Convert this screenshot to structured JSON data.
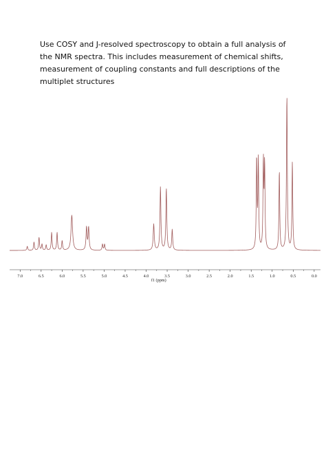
{
  "document": {
    "instructions": "Use COSY and J-resolved spectroscopy to obtain a full analysis of the NMR spectra. This includes measurement of chemical shifts, measurement of coupling constants and full descriptions of the multiplet structures"
  },
  "chart_data": {
    "type": "line",
    "title": "",
    "xlabel": "f1 (ppm)",
    "ylabel": "",
    "xlim": [
      7.25,
      -0.15
    ],
    "x_reversed": true,
    "grid": false,
    "line_color": "#a05a5a",
    "x_ticks": [
      7.0,
      6.5,
      6.0,
      5.5,
      5.0,
      4.5,
      4.0,
      3.5,
      3.0,
      2.5,
      2.0,
      1.5,
      1.0,
      0.5,
      0.0
    ],
    "x_tick_labels": [
      "7.0",
      "6.5",
      "6.0",
      "5.5",
      "5.0",
      "4.5",
      "4.0",
      "3.5",
      "3.0",
      "2.5",
      "2.0",
      "1.5",
      "1.0",
      "0.5",
      "0.0"
    ],
    "peak_shifts_ppm": [
      6.83,
      6.67,
      6.55,
      6.48,
      6.38,
      6.25,
      6.12,
      6.0,
      5.77,
      5.42,
      5.37,
      5.04,
      4.99,
      3.82,
      3.66,
      3.52,
      3.38,
      1.37,
      1.33,
      1.21,
      1.18,
      0.83,
      0.65,
      0.52
    ],
    "peak_intensities": [
      0.06,
      0.12,
      0.19,
      0.09,
      0.08,
      0.26,
      0.26,
      0.14,
      0.51,
      0.33,
      0.33,
      0.09,
      0.09,
      0.38,
      0.92,
      0.9,
      0.3,
      1.31,
      1.28,
      1.25,
      1.21,
      1.16,
      2.25,
      1.28
    ],
    "peak_width_ppm": [
      0.012,
      0.012,
      0.012,
      0.012,
      0.012,
      0.012,
      0.012,
      0.012,
      0.022,
      0.014,
      0.014,
      0.012,
      0.012,
      0.015,
      0.013,
      0.013,
      0.013,
      0.011,
      0.011,
      0.011,
      0.011,
      0.011,
      0.012,
      0.011
    ]
  }
}
